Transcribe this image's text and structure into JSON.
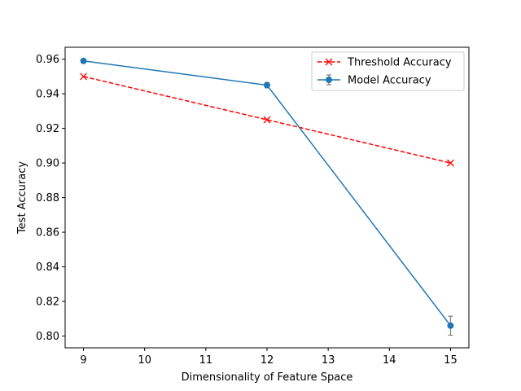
{
  "chart_data": {
    "type": "line",
    "title": "",
    "xlabel": "Dimensionality of Feature Space",
    "ylabel": "Test Accuracy",
    "xlim": [
      8.7,
      15.3
    ],
    "ylim": [
      0.7932,
      0.9669
    ],
    "xticks": [
      9,
      10,
      11,
      12,
      13,
      14,
      15
    ],
    "xtick_labels": [
      "9",
      "10",
      "11",
      "12",
      "13",
      "14",
      "15"
    ],
    "yticks": [
      0.8,
      0.82,
      0.84,
      0.86,
      0.88,
      0.9,
      0.92,
      0.94,
      0.96
    ],
    "ytick_labels": [
      "0.80",
      "0.82",
      "0.84",
      "0.86",
      "0.88",
      "0.90",
      "0.92",
      "0.94",
      "0.96"
    ],
    "grid": false,
    "legend_position": "top-right",
    "series": [
      {
        "name": "Threshold Accuracy",
        "x": [
          9,
          12,
          15
        ],
        "y": [
          0.95,
          0.925,
          0.9
        ],
        "color": "#ff0000",
        "line_style": "dashed",
        "marker": "x"
      },
      {
        "name": "Model Accuracy",
        "x": [
          9,
          12,
          15
        ],
        "y": [
          0.959,
          0.945,
          0.806
        ],
        "yerr": [
          0.001,
          0.0015,
          0.0055
        ],
        "color": "#1f77b4",
        "errorbar_color": "#808080",
        "line_style": "solid",
        "marker": "circle"
      }
    ]
  }
}
